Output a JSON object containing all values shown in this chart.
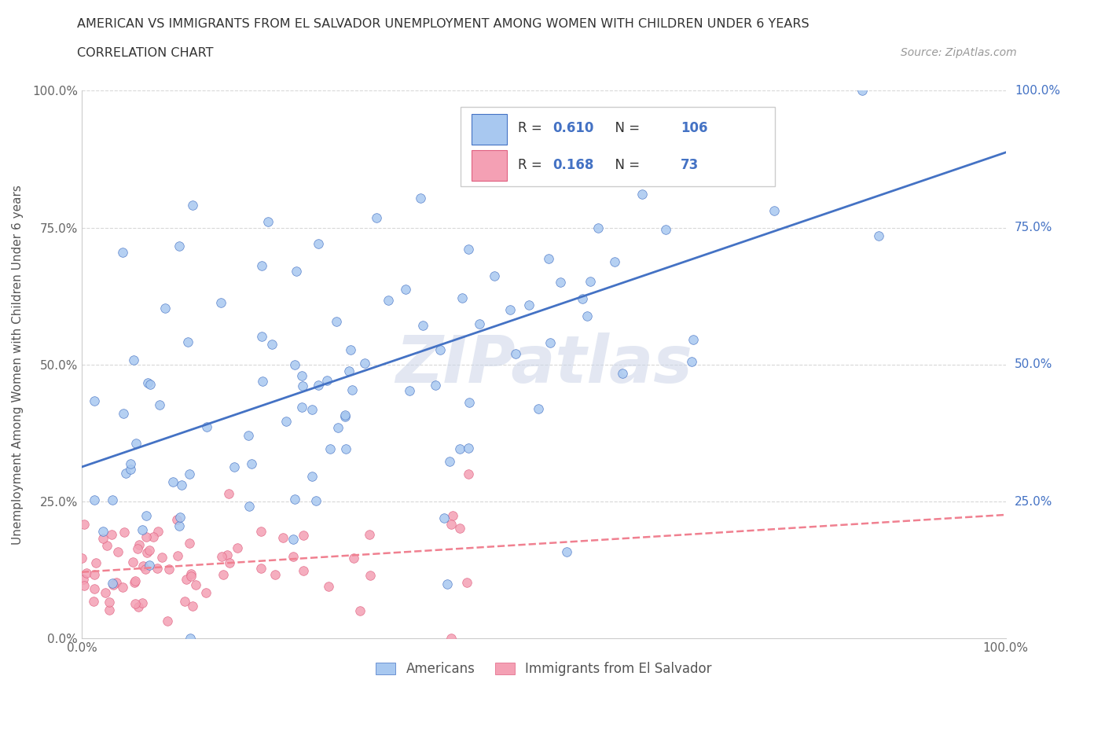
{
  "title_line1": "AMERICAN VS IMMIGRANTS FROM EL SALVADOR UNEMPLOYMENT AMONG WOMEN WITH CHILDREN UNDER 6 YEARS",
  "title_line2": "CORRELATION CHART",
  "source_text": "Source: ZipAtlas.com",
  "ylabel": "Unemployment Among Women with Children Under 6 years",
  "legend_label1": "Americans",
  "legend_label2": "Immigrants from El Salvador",
  "R1": 0.61,
  "N1": 106,
  "R2": 0.168,
  "N2": 73,
  "color_blue": "#a8c8f0",
  "color_blue_line": "#4472c4",
  "color_blue_dark": "#4472c4",
  "color_pink": "#f4a0b4",
  "color_pink_line": "#f08090",
  "color_pink_dark": "#e06080",
  "color_watermark": "#d0d8e8",
  "grid_color": "#d8d8d8",
  "background_color": "#ffffff"
}
